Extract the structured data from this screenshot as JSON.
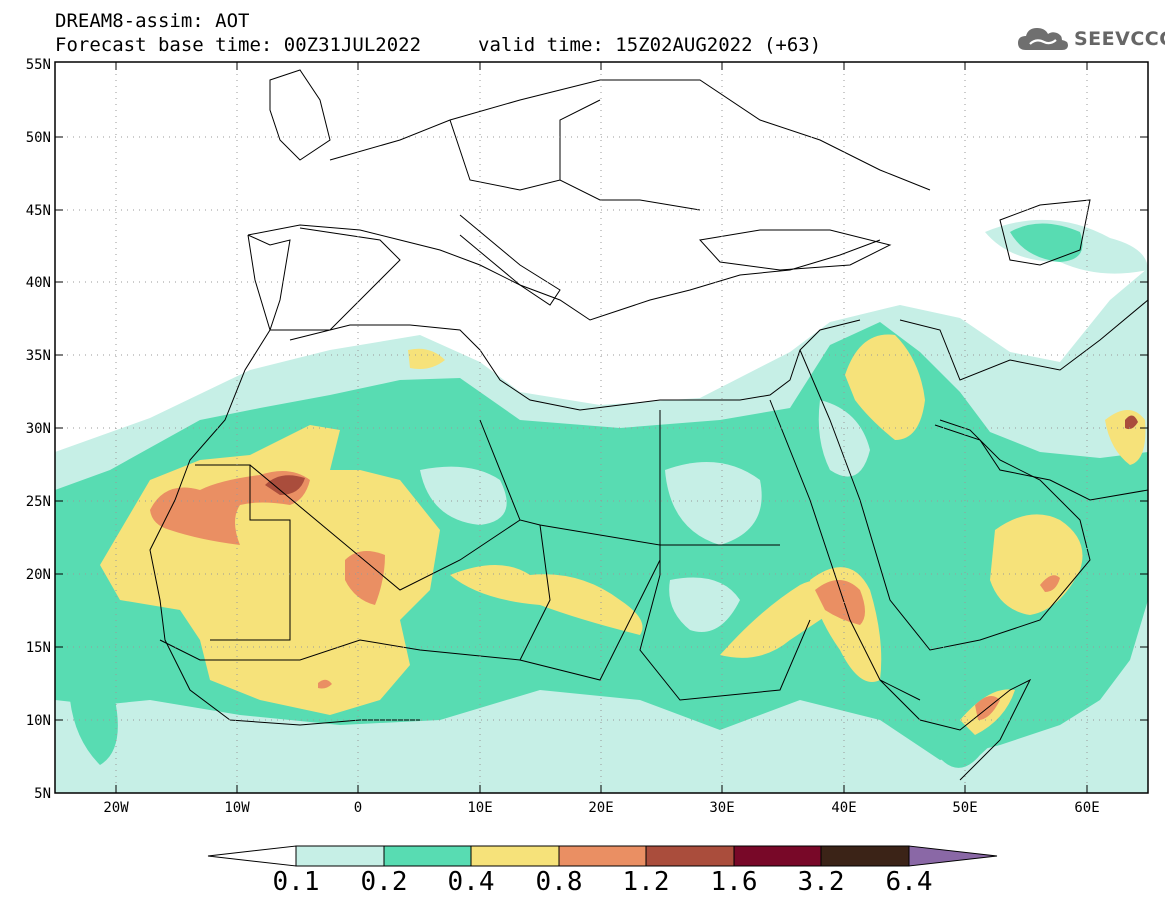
{
  "header": {
    "title": "DREAM8-assim: AOT",
    "base_time": "Forecast base time: 00Z31JUL2022",
    "valid_time": "valid time: 15Z02AUG2022 (+63)"
  },
  "logo": {
    "text": "SEEVCCC",
    "icon": "cloud-icon"
  },
  "map": {
    "lon_range": [
      -25,
      65
    ],
    "lat_range": [
      5,
      55
    ],
    "lat_ticks": [
      "5N",
      "10N",
      "15N",
      "20N",
      "25N",
      "30N",
      "35N",
      "40N",
      "45N",
      "50N",
      "55N"
    ],
    "lon_ticks": [
      "20W",
      "10W",
      "0",
      "10E",
      "20E",
      "30E",
      "40E",
      "50E",
      "60E"
    ],
    "gridlines": "dotted",
    "field": "AOT"
  },
  "colorbar": {
    "labels": [
      "0.1",
      "0.2",
      "0.4",
      "0.8",
      "1.2",
      "1.6",
      "3.2",
      "6.4"
    ],
    "colors": [
      "#ffffff",
      "#c6efe6",
      "#58dcb2",
      "#f6e27a",
      "#ea8f63",
      "#aa4d3c",
      "#780828",
      "#3b2317",
      "#8a68a6"
    ]
  }
}
